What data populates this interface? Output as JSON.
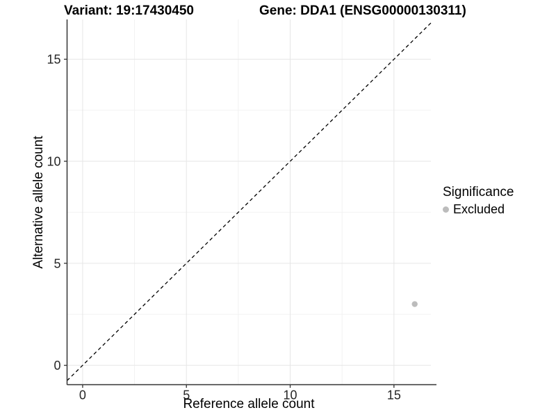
{
  "chart_data": {
    "type": "scatter",
    "title_left": "Variant: 19:17430450",
    "title_right": "Gene: DDA1 (ENSG00000130311)",
    "xlabel": "Reference allele count",
    "ylabel": "Alternative allele count",
    "x_ticks": [
      0,
      5,
      10,
      15
    ],
    "y_ticks": [
      0,
      5,
      10,
      15
    ],
    "x_minor_ticks": [
      2.5,
      7.5,
      12.5
    ],
    "y_minor_ticks": [
      2.5,
      7.5,
      12.5
    ],
    "xlim": [
      -0.75,
      16.78
    ],
    "ylim": [
      -0.95,
      16.95
    ],
    "grid": true,
    "identity_line": {
      "equation": "y = x",
      "style": "dashed",
      "color": "#000000"
    },
    "series": [
      {
        "name": "Excluded",
        "color": "#bcbcbc",
        "points": [
          {
            "x": 16,
            "y": 3
          }
        ]
      }
    ],
    "legend": {
      "title": "Significance",
      "position": "right",
      "items": [
        {
          "label": "Excluded",
          "color": "#bcbcbc"
        }
      ]
    }
  }
}
